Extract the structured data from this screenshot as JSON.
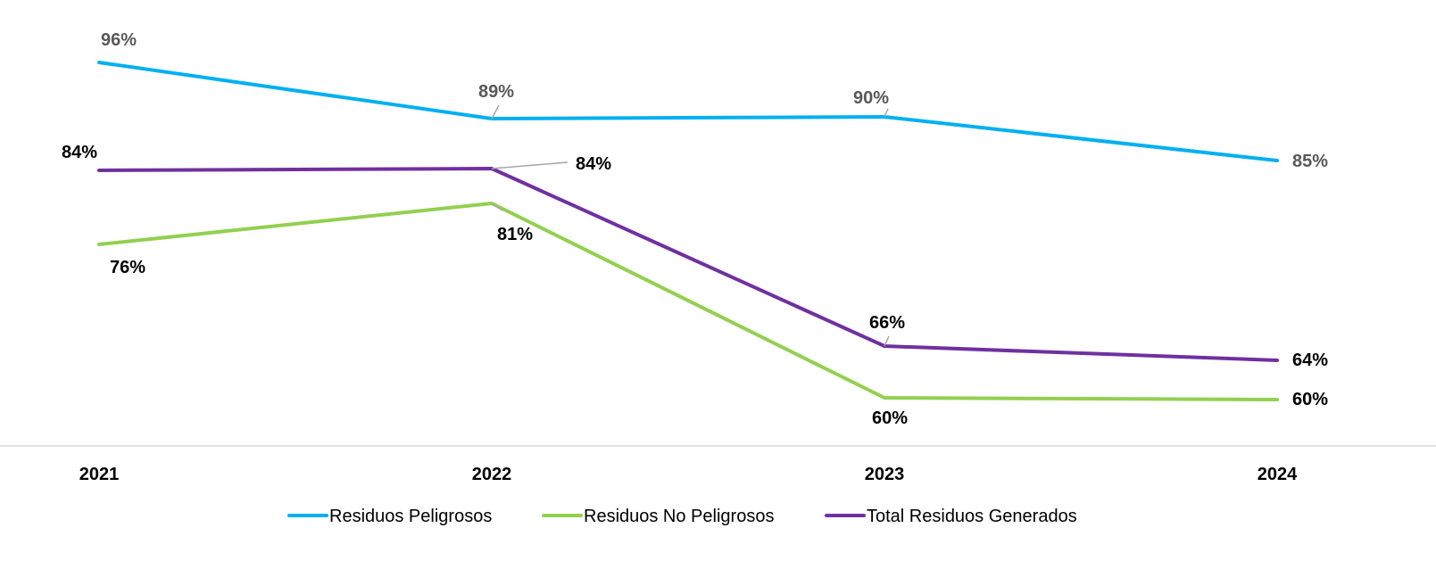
{
  "chart_data": {
    "type": "line",
    "categories": [
      "2021",
      "2022",
      "2023",
      "2024"
    ],
    "series": [
      {
        "name": "Residuos Peligrosos",
        "values": [
          96,
          89,
          90,
          85
        ],
        "labels": [
          "96%",
          "89%",
          "90%",
          "85%"
        ],
        "color": "#00B0F0",
        "label_color": "#595959"
      },
      {
        "name": "Residuos No Peligrosos",
        "values": [
          76,
          81,
          60,
          60
        ],
        "labels": [
          "76%",
          "81%",
          "60%",
          "60%"
        ],
        "color": "#92D050",
        "label_color": "#000000"
      },
      {
        "name": "Total Residuos Generados",
        "values": [
          84,
          84,
          66,
          64
        ],
        "labels": [
          "84%",
          "84%",
          "66%",
          "64%"
        ],
        "color": "#7030A0",
        "label_color": "#000000"
      }
    ],
    "legend_position": "bottom",
    "grid": false,
    "axis_line_color": "#D9D9D9",
    "leader_line_color": "#A6A6A6"
  }
}
